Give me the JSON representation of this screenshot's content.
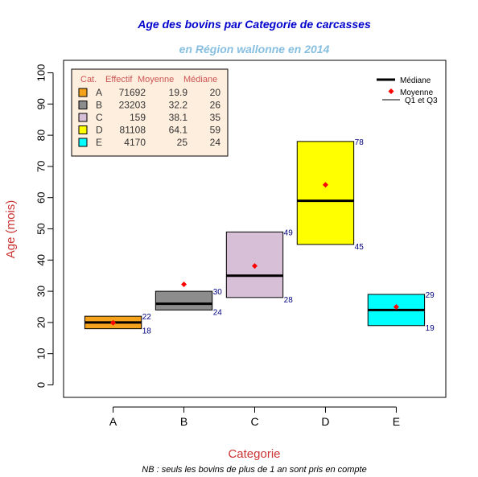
{
  "chart_data": {
    "type": "box",
    "title": "Age des bovins par Categorie de carcasses",
    "subtitle": "en Région wallonne en 2014",
    "xlabel": "Categorie",
    "ylabel": "Age (mois)",
    "note": "NB : seuls les bovins de plus de 1 an sont pris en compte",
    "ylim": [
      -4,
      104
    ],
    "yticks": [
      0,
      10,
      20,
      30,
      40,
      50,
      60,
      70,
      80,
      90,
      100
    ],
    "categories": [
      "A",
      "B",
      "C",
      "D",
      "E"
    ],
    "q1": [
      18,
      24,
      28,
      45,
      19
    ],
    "q3": [
      22,
      30,
      49,
      78,
      29
    ],
    "median": [
      20,
      26,
      35,
      59,
      24
    ],
    "mean": [
      19.9,
      32.2,
      38.1,
      64.1,
      25
    ],
    "q1_labels": [
      "18",
      "24",
      "28",
      "45",
      "19"
    ],
    "q3_labels": [
      "22",
      "30",
      "49",
      "78",
      "29"
    ],
    "colors": [
      "#f5a31c",
      "#8c8c8c",
      "#d8bfd8",
      "#ffff00",
      "#00ffff"
    ],
    "grid": false,
    "legend": {
      "position": "top-right",
      "median_label": "Médiane",
      "mean_label": "Moyenne",
      "q_label": "Q1 et Q3"
    },
    "table": {
      "position": "top-left",
      "headers": [
        "Cat.",
        "Effectif",
        "Moyenne",
        "Médiane"
      ],
      "rows": [
        [
          "A",
          "71692",
          "19.9",
          "20"
        ],
        [
          "B",
          "23203",
          "32.2",
          "26"
        ],
        [
          "C",
          "159",
          "38.1",
          "35"
        ],
        [
          "D",
          "81108",
          "64.1",
          "59"
        ],
        [
          "E",
          "4170",
          "25",
          "24"
        ]
      ]
    },
    "style": {
      "title_color": "#0000cc",
      "subtitle_color": "#87bfe0",
      "axis_label_color": "#cc3333",
      "value_label_color": "#000080",
      "mean_color": "#ff0000",
      "table_bg": "#feeedd",
      "table_header_color": "#cc5555"
    }
  }
}
